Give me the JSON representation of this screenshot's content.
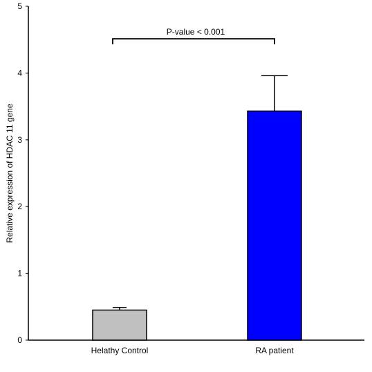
{
  "chart_data": {
    "type": "bar",
    "categories": [
      "Helathy Control",
      "RA patient"
    ],
    "values": [
      0.45,
      3.43
    ],
    "error_upper": [
      0.49,
      3.96
    ],
    "colors": [
      "#c0c0c0",
      "#0000ff"
    ],
    "ylabel": "Relative expression of HDAC 11 gene",
    "xlabel": "",
    "ylim": [
      0,
      5
    ],
    "yticks": [
      0,
      1,
      2,
      3,
      4,
      5
    ],
    "grid": false,
    "annotation": {
      "text": "P-value < 0.001",
      "bracket_between": [
        "Helathy Control",
        "RA patient"
      ]
    }
  }
}
